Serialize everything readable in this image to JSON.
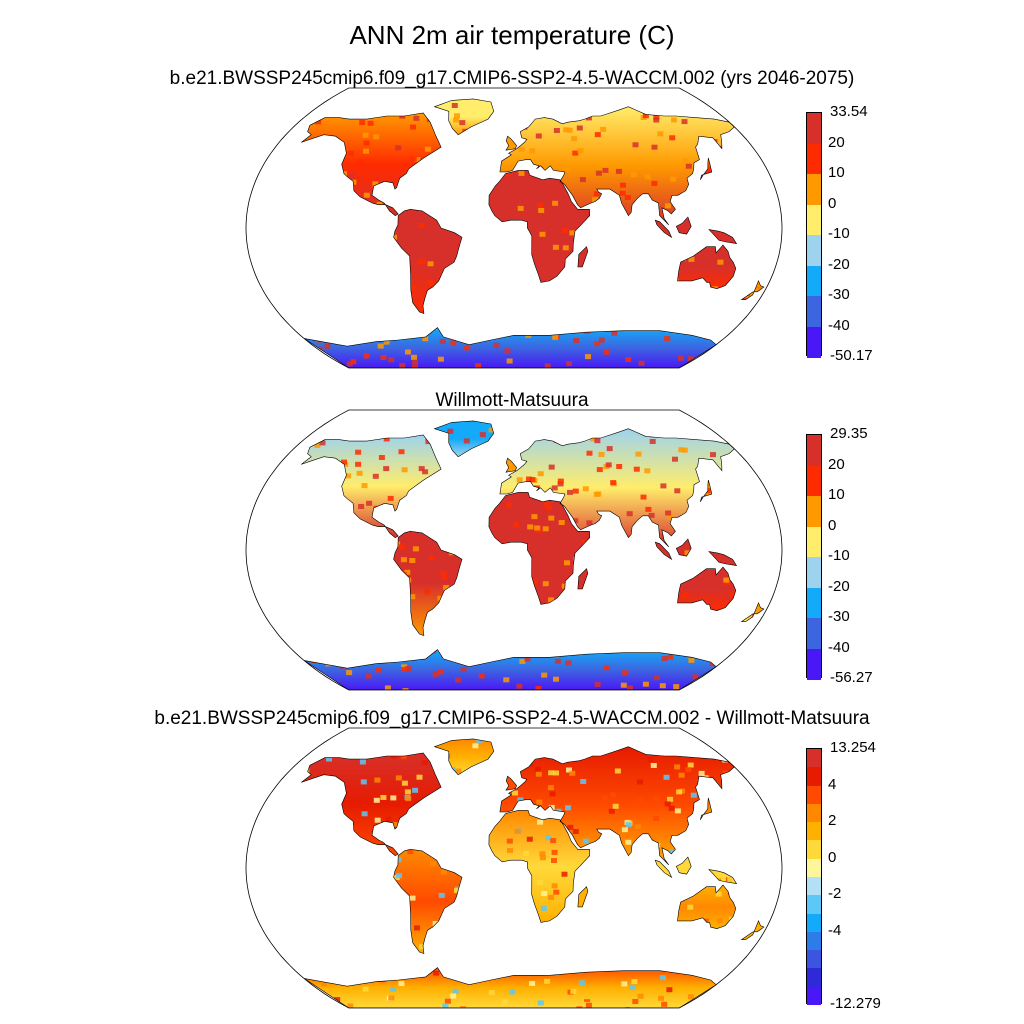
{
  "main_title": "ANN 2m air temperature (C)",
  "panels": [
    {
      "title": "b.e21.BWSSP245cmip6.f09_g17.CMIP6-SSP2-4.5-WACCM.002 (yrs 2046-2075)",
      "colorbar": {
        "top": "33.54",
        "bottom": "-50.17",
        "ticks": [
          "20",
          "10",
          "0",
          "-10",
          "-20",
          "-30",
          "-40"
        ],
        "colors": [
          "#d7302b",
          "#ff2b00",
          "#ff9900",
          "#ffed6b",
          "#9dd3ef",
          "#13aaf9",
          "#3c66e0",
          "#4a18f6"
        ]
      }
    },
    {
      "title": "Willmott-Matsuura",
      "colorbar": {
        "top": "29.35",
        "bottom": "-56.27",
        "ticks": [
          "20",
          "10",
          "0",
          "-10",
          "-20",
          "-30",
          "-40"
        ],
        "colors": [
          "#d7302b",
          "#ff2b00",
          "#ff9900",
          "#ffed6b",
          "#9dd3ef",
          "#13aaf9",
          "#3c66e0",
          "#4a18f6"
        ]
      }
    },
    {
      "title": "b.e21.BWSSP245cmip6.f09_g17.CMIP6-SSP2-4.5-WACCM.002 - Willmott-Matsuura",
      "colorbar": {
        "top": "13.254",
        "bottom": "-12.279",
        "ticks": [
          "4",
          "2",
          "0",
          "-2",
          "-4"
        ],
        "tick_slots": [
          2,
          4,
          6,
          8,
          10
        ],
        "colors": [
          "#d7302b",
          "#e61b00",
          "#ff4a00",
          "#ff8800",
          "#ffb000",
          "#ffd93a",
          "#fff59a",
          "#b2e0f5",
          "#5cc8f7",
          "#13aaf9",
          "#2e7bea",
          "#3c55e0",
          "#2e2ad8",
          "#4a18f6"
        ]
      }
    }
  ]
}
